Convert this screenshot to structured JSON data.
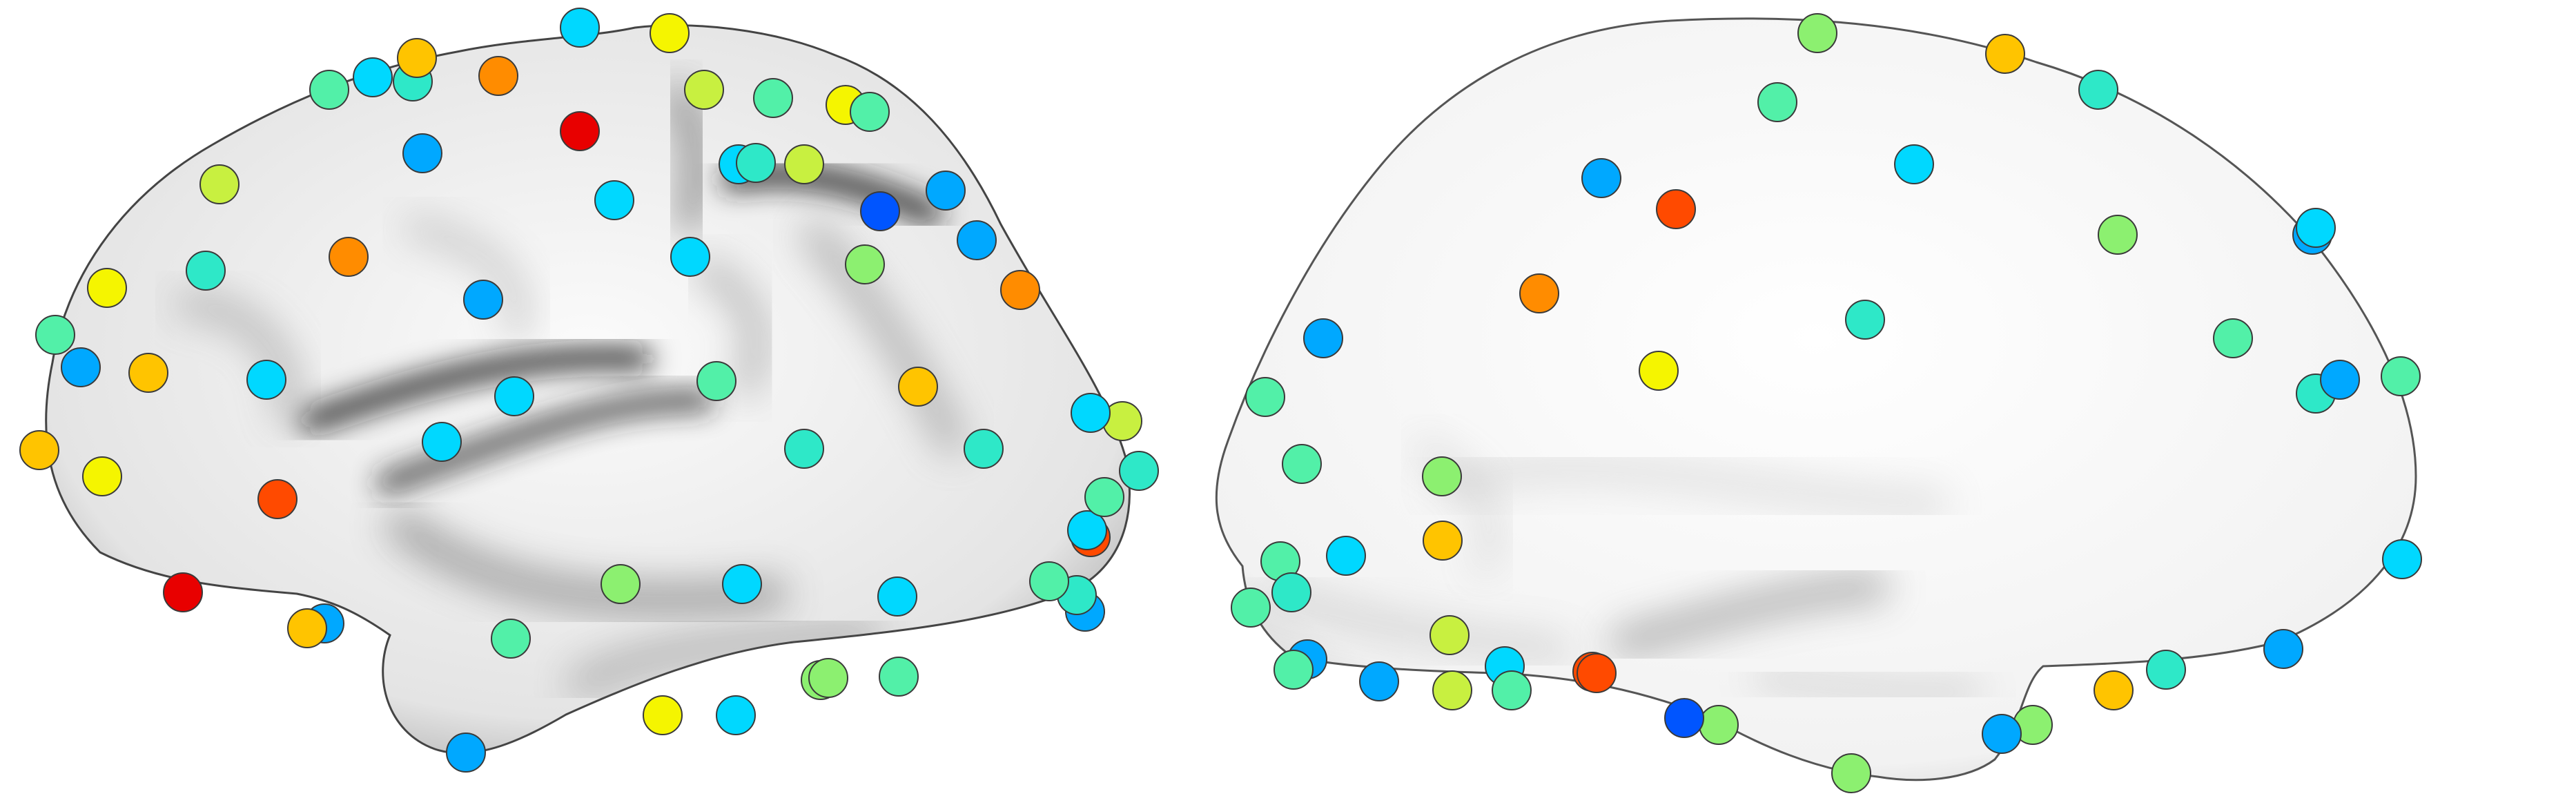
{
  "figure": {
    "views": [
      {
        "id": "lateral",
        "description_visible": false
      },
      {
        "id": "medial",
        "description_visible": false
      }
    ]
  },
  "palette": {
    "background": "#ffffff",
    "surface_light": "#f2f2f2",
    "surface_dark": "#1c1c1c",
    "outline": "#3a3a3a",
    "markers": [
      "#0055ff",
      "#00a8ff",
      "#00d8ff",
      "#2ee8c8",
      "#52f0a8",
      "#8cf070",
      "#c8f040",
      "#f5f500",
      "#ffc400",
      "#ff8c00",
      "#ff4a00",
      "#e80000"
    ]
  },
  "left_view_markers": [
    [
      "#52f0a8"
    ],
    [
      "#f5f500"
    ],
    [
      "#2ee8c8"
    ],
    [
      "#00d8ff"
    ],
    [
      "#ffc400"
    ],
    [
      "#ff8c00"
    ],
    [
      "#52f0a8"
    ],
    [
      "#f5f500"
    ],
    [
      "#00d8ff"
    ],
    [
      "#52f0a8"
    ],
    [
      "#e80000"
    ],
    [
      "#00a8ff"
    ],
    [
      "#00d8ff"
    ],
    [
      "#c8f040"
    ],
    [
      "#00a8ff"
    ],
    [
      "#0055ff"
    ],
    [
      "#2ee8c8"
    ],
    [
      "#00a8ff"
    ],
    [
      "#00d8ff"
    ],
    [
      "#ff8c00"
    ],
    [
      "#c8f040"
    ],
    [
      "#00a8ff"
    ],
    [
      "#00d8ff"
    ],
    [
      "#8cf070"
    ],
    [
      "#ff8c00"
    ],
    [
      "#f5f500"
    ],
    [
      "#2ee8c8"
    ],
    [
      "#52f0a8"
    ],
    [
      "#00a8ff"
    ],
    [
      "#ffc400"
    ],
    [
      "#00d8ff"
    ],
    [
      "#00d8ff"
    ],
    [
      "#52f0a8"
    ],
    [
      "#ffc400"
    ],
    [
      "#ffc400"
    ],
    [
      "#ff4a00"
    ],
    [
      "#2ee8c8"
    ],
    [
      "#00d8ff"
    ],
    [
      "#2ee8c8"
    ],
    [
      "#c8f040"
    ],
    [
      "#f5f500"
    ],
    [
      "#ff4a00"
    ],
    [
      "#00d8ff"
    ],
    [
      "#8cf070"
    ],
    [
      "#00d8ff"
    ],
    [
      "#00d8ff"
    ],
    [
      "#52f0a8"
    ],
    [
      "#00a8ff"
    ],
    [
      "#e80000"
    ],
    [
      "#ffc400"
    ],
    [
      "#00a8ff"
    ],
    [
      "#2ee8c8"
    ],
    [
      "#52f0a8"
    ],
    [
      "#f5f500"
    ],
    [
      "#00d8ff"
    ],
    [
      "#8cf070"
    ],
    [
      "#52f0a8"
    ],
    [
      "#2ee8c8"
    ],
    [
      "#c8f040"
    ],
    [
      "#00a8ff"
    ],
    [
      "#52f0a8"
    ],
    [
      "#8cf070"
    ],
    [
      "#00d8ff"
    ]
  ],
  "right_view_markers": [
    [
      "#52f0a8"
    ],
    [
      "#ffc400"
    ],
    [
      "#2ee8c8"
    ],
    [
      "#8cf070"
    ],
    [
      "#00a8ff"
    ],
    [
      "#2ee8c8"
    ],
    [
      "#ff4a00"
    ],
    [
      "#52f0a8"
    ],
    [
      "#00a8ff"
    ],
    [
      "#00d8ff"
    ],
    [
      "#00a8ff"
    ],
    [
      "#ff8c00"
    ],
    [
      "#2ee8c8"
    ],
    [
      "#8cf070"
    ],
    [
      "#00a8ff"
    ],
    [
      "#f5f500"
    ],
    [
      "#52f0a8"
    ],
    [
      "#52f0a8"
    ],
    [
      "#52f0a8"
    ],
    [
      "#00d8ff"
    ],
    [
      "#8cf070"
    ],
    [
      "#2ee8c8"
    ],
    [
      "#52f0a8"
    ],
    [
      "#ffc400"
    ],
    [
      "#00a8ff"
    ],
    [
      "#ff4a00"
    ],
    [
      "#52f0a8"
    ],
    [
      "#c8f040"
    ],
    [
      "#00d8ff"
    ],
    [
      "#8cf070"
    ],
    [
      "#00a8ff"
    ],
    [
      "#c8f040"
    ],
    [
      "#52f0a8"
    ],
    [
      "#ff4a00"
    ],
    [
      "#0055ff"
    ],
    [
      "#8cf070"
    ],
    [
      "#8cf070"
    ],
    [
      "#00a8ff"
    ],
    [
      "#ffc400"
    ],
    [
      "#2ee8c8"
    ],
    [
      "#00d8ff"
    ],
    [
      "#00a8ff"
    ],
    [
      "#52f0a8"
    ],
    [
      "#00d8ff"
    ]
  ]
}
